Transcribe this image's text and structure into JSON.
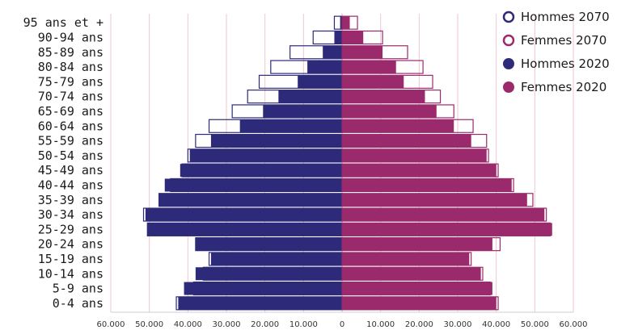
{
  "chart_data": {
    "type": "bar",
    "orientation": "horizontal",
    "subtype": "population-pyramid",
    "categories": [
      "0-4 ans",
      "5-9 ans",
      "10-14 ans",
      "15-19 ans",
      "20-24 ans",
      "25-29 ans",
      "30-34 ans",
      "35-39 ans",
      "40-44 ans",
      "45-49 ans",
      "50-54 ans",
      "55-59 ans",
      "60-64 ans",
      "65-69 ans",
      "70-74 ans",
      "75-79 ans",
      "80-84 ans",
      "85-89 ans",
      "90-94 ans",
      "95 ans et +"
    ],
    "series": [
      {
        "name": "Hommes 2070",
        "side": "left",
        "style": "outline",
        "color": "#2e2a7a",
        "values": [
          43000,
          38500,
          36000,
          34500,
          38000,
          50500,
          51500,
          47500,
          44500,
          41500,
          40000,
          38000,
          34500,
          28500,
          24500,
          21500,
          18500,
          13500,
          7500,
          2000
        ]
      },
      {
        "name": "Femmes 2070",
        "side": "right",
        "style": "outline",
        "color": "#9b2a6c",
        "values": [
          40500,
          38500,
          36500,
          33500,
          41000,
          54000,
          53000,
          49500,
          44500,
          40500,
          38000,
          37500,
          34000,
          29000,
          25500,
          23500,
          21000,
          17000,
          10500,
          4000
        ]
      },
      {
        "name": "Hommes 2020",
        "side": "left",
        "style": "filled",
        "color": "#2e2a7a",
        "values": [
          42500,
          41000,
          38000,
          34000,
          38000,
          50500,
          51000,
          47500,
          46000,
          42000,
          39500,
          34000,
          26500,
          20500,
          16500,
          11500,
          9000,
          5000,
          2000,
          500
        ]
      },
      {
        "name": "Femmes 2020",
        "side": "right",
        "style": "filled",
        "color": "#9b2a6c",
        "values": [
          40000,
          39000,
          36000,
          33000,
          39000,
          54500,
          52500,
          48000,
          44000,
          40000,
          37500,
          33500,
          29000,
          24500,
          21500,
          16000,
          14000,
          10500,
          5500,
          2000
        ]
      }
    ],
    "xticks": [
      "60.000",
      "50.000",
      "40.000",
      "30.000",
      "20.000",
      "10.000",
      "0",
      "10.000",
      "20.000",
      "30.000",
      "40.000",
      "50.000",
      "60.000"
    ],
    "xlim": [
      -60000,
      60000
    ],
    "grid": true,
    "legend": "top-right"
  }
}
